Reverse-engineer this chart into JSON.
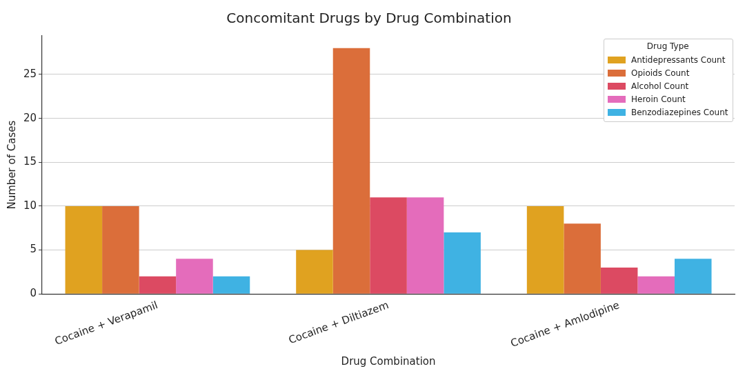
{
  "chart_data": {
    "type": "bar",
    "title": "Concomitant Drugs by Drug Combination",
    "xlabel": "Drug Combination",
    "ylabel": "Number of Cases",
    "legend_title": "Drug Type",
    "categories": [
      "Cocaine + Verapamil",
      "Cocaine + Diltiazem",
      "Cocaine + Amlodipine"
    ],
    "series": [
      {
        "name": "Antidepressants Count",
        "color": "#e0a220",
        "values": [
          10,
          5,
          10
        ]
      },
      {
        "name": "Opioids Count",
        "color": "#db6e3a",
        "values": [
          10,
          28,
          8
        ]
      },
      {
        "name": "Alcohol Count",
        "color": "#dc4a62",
        "values": [
          2,
          11,
          3
        ]
      },
      {
        "name": "Heroin Count",
        "color": "#e46cbb",
        "values": [
          4,
          11,
          2
        ]
      },
      {
        "name": "Benzodiazepines Count",
        "color": "#3fb2e3",
        "values": [
          2,
          7,
          4
        ]
      }
    ],
    "ylim": [
      0,
      29.4
    ],
    "yticks": [
      0,
      5,
      10,
      15,
      20,
      25
    ],
    "grid": "y",
    "legend": "top right"
  }
}
